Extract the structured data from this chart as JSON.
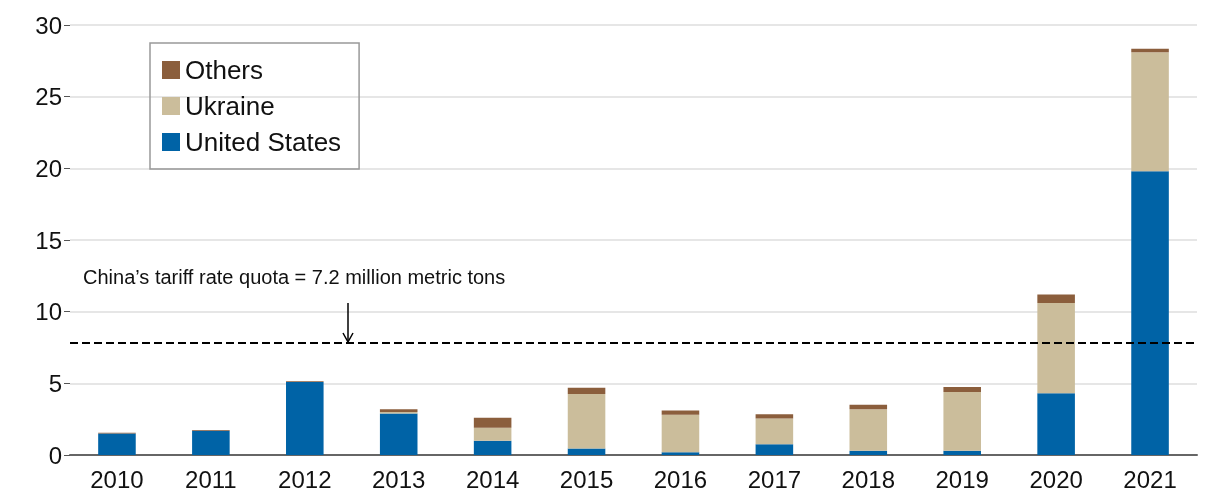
{
  "chart_data": {
    "type": "bar",
    "stacked": true,
    "categories": [
      "2010",
      "2011",
      "2012",
      "2013",
      "2014",
      "2015",
      "2016",
      "2017",
      "2018",
      "2019",
      "2020",
      "2021"
    ],
    "series": [
      {
        "name": "United States",
        "color": "#0063a6",
        "values": [
          1.5,
          1.7,
          5.1,
          2.9,
          1.0,
          0.45,
          0.2,
          0.75,
          0.3,
          0.3,
          4.3,
          19.8
        ]
      },
      {
        "name": "Ukraine",
        "color": "#cbbd9b",
        "values": [
          0,
          0,
          0,
          0.1,
          0.9,
          3.8,
          2.6,
          1.8,
          2.9,
          4.1,
          6.3,
          8.3
        ]
      },
      {
        "name": "Others",
        "color": "#8b5e3c",
        "values": [
          0.05,
          0.05,
          0.05,
          0.2,
          0.7,
          0.45,
          0.3,
          0.3,
          0.3,
          0.35,
          0.6,
          0.25
        ]
      }
    ],
    "ylim": [
      0,
      30
    ],
    "yticks": [
      0,
      5,
      10,
      15,
      20,
      25,
      30
    ],
    "grid": "y",
    "legend": "top left",
    "annotations": [
      "China’s tariff rate quota = 7.2 million metric tons"
    ],
    "ref_lines": [
      {
        "axis": "y",
        "value": 7.8,
        "color": "#000000",
        "line_style": "dashed"
      }
    ]
  }
}
